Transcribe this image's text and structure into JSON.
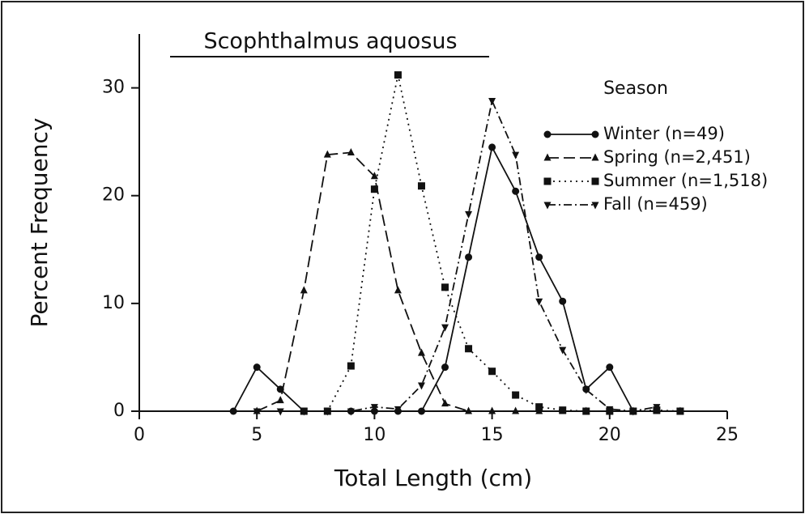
{
  "chart_data": {
    "type": "line",
    "title": "Scophthalmus aquosus",
    "xlabel": "Total Length (cm)",
    "ylabel": "Percent Frequency",
    "legend_title": "Season",
    "legend": "upper right",
    "xlim": [
      0,
      25
    ],
    "ylim": [
      0,
      35
    ],
    "xticks": [
      0,
      5,
      10,
      15,
      20,
      25
    ],
    "yticks": [
      0,
      10,
      20,
      30
    ],
    "series": [
      {
        "name": "Winter (n=49)",
        "color": "#111",
        "marker": "circle",
        "dash": "solid",
        "x": [
          4,
          5,
          6,
          7,
          8,
          9,
          10,
          11,
          12,
          13,
          14,
          15,
          16,
          17,
          18,
          19,
          20,
          21
        ],
        "values": [
          0,
          4.08,
          2.04,
          0,
          0,
          0,
          0,
          0,
          0,
          4.08,
          14.29,
          24.49,
          20.41,
          14.29,
          10.2,
          2.04,
          4.08,
          0
        ]
      },
      {
        "name": "Spring (n=2,451)",
        "color": "#111",
        "marker": "triangle",
        "dash": "dashed",
        "x": [
          5,
          6,
          7,
          8,
          9,
          10,
          11,
          12,
          13,
          14,
          15,
          16,
          17,
          18,
          19,
          20,
          21,
          22,
          23
        ],
        "values": [
          0,
          1,
          11.2,
          23.8,
          24,
          21.8,
          11.2,
          5.4,
          0.7,
          0,
          0,
          0,
          0,
          0,
          0,
          0,
          0,
          0,
          0
        ]
      },
      {
        "name": "Summer (n=1,518)",
        "color": "#111",
        "marker": "square",
        "dash": "dotted",
        "x": [
          7,
          8,
          9,
          10,
          11,
          12,
          13,
          14,
          15,
          16,
          17,
          18,
          19,
          20,
          21,
          22,
          23
        ],
        "values": [
          0,
          0,
          4.2,
          20.6,
          31.2,
          20.9,
          11.5,
          5.8,
          3.7,
          1.5,
          0.4,
          0.1,
          0,
          0,
          0,
          0.1,
          0
        ]
      },
      {
        "name": "Fall (n=459)",
        "color": "#111",
        "marker": "triangle-down",
        "dash": "dashdot",
        "x": [
          5,
          6,
          7,
          8,
          9,
          10,
          11,
          12,
          13,
          14,
          15,
          16,
          17,
          18,
          19,
          20,
          21,
          22
        ],
        "values": [
          0,
          0,
          0,
          0,
          0,
          0.4,
          0.2,
          2.4,
          7.8,
          18.3,
          28.8,
          23.8,
          10.2,
          5.7,
          2,
          0.2,
          0,
          0.4
        ]
      }
    ]
  }
}
